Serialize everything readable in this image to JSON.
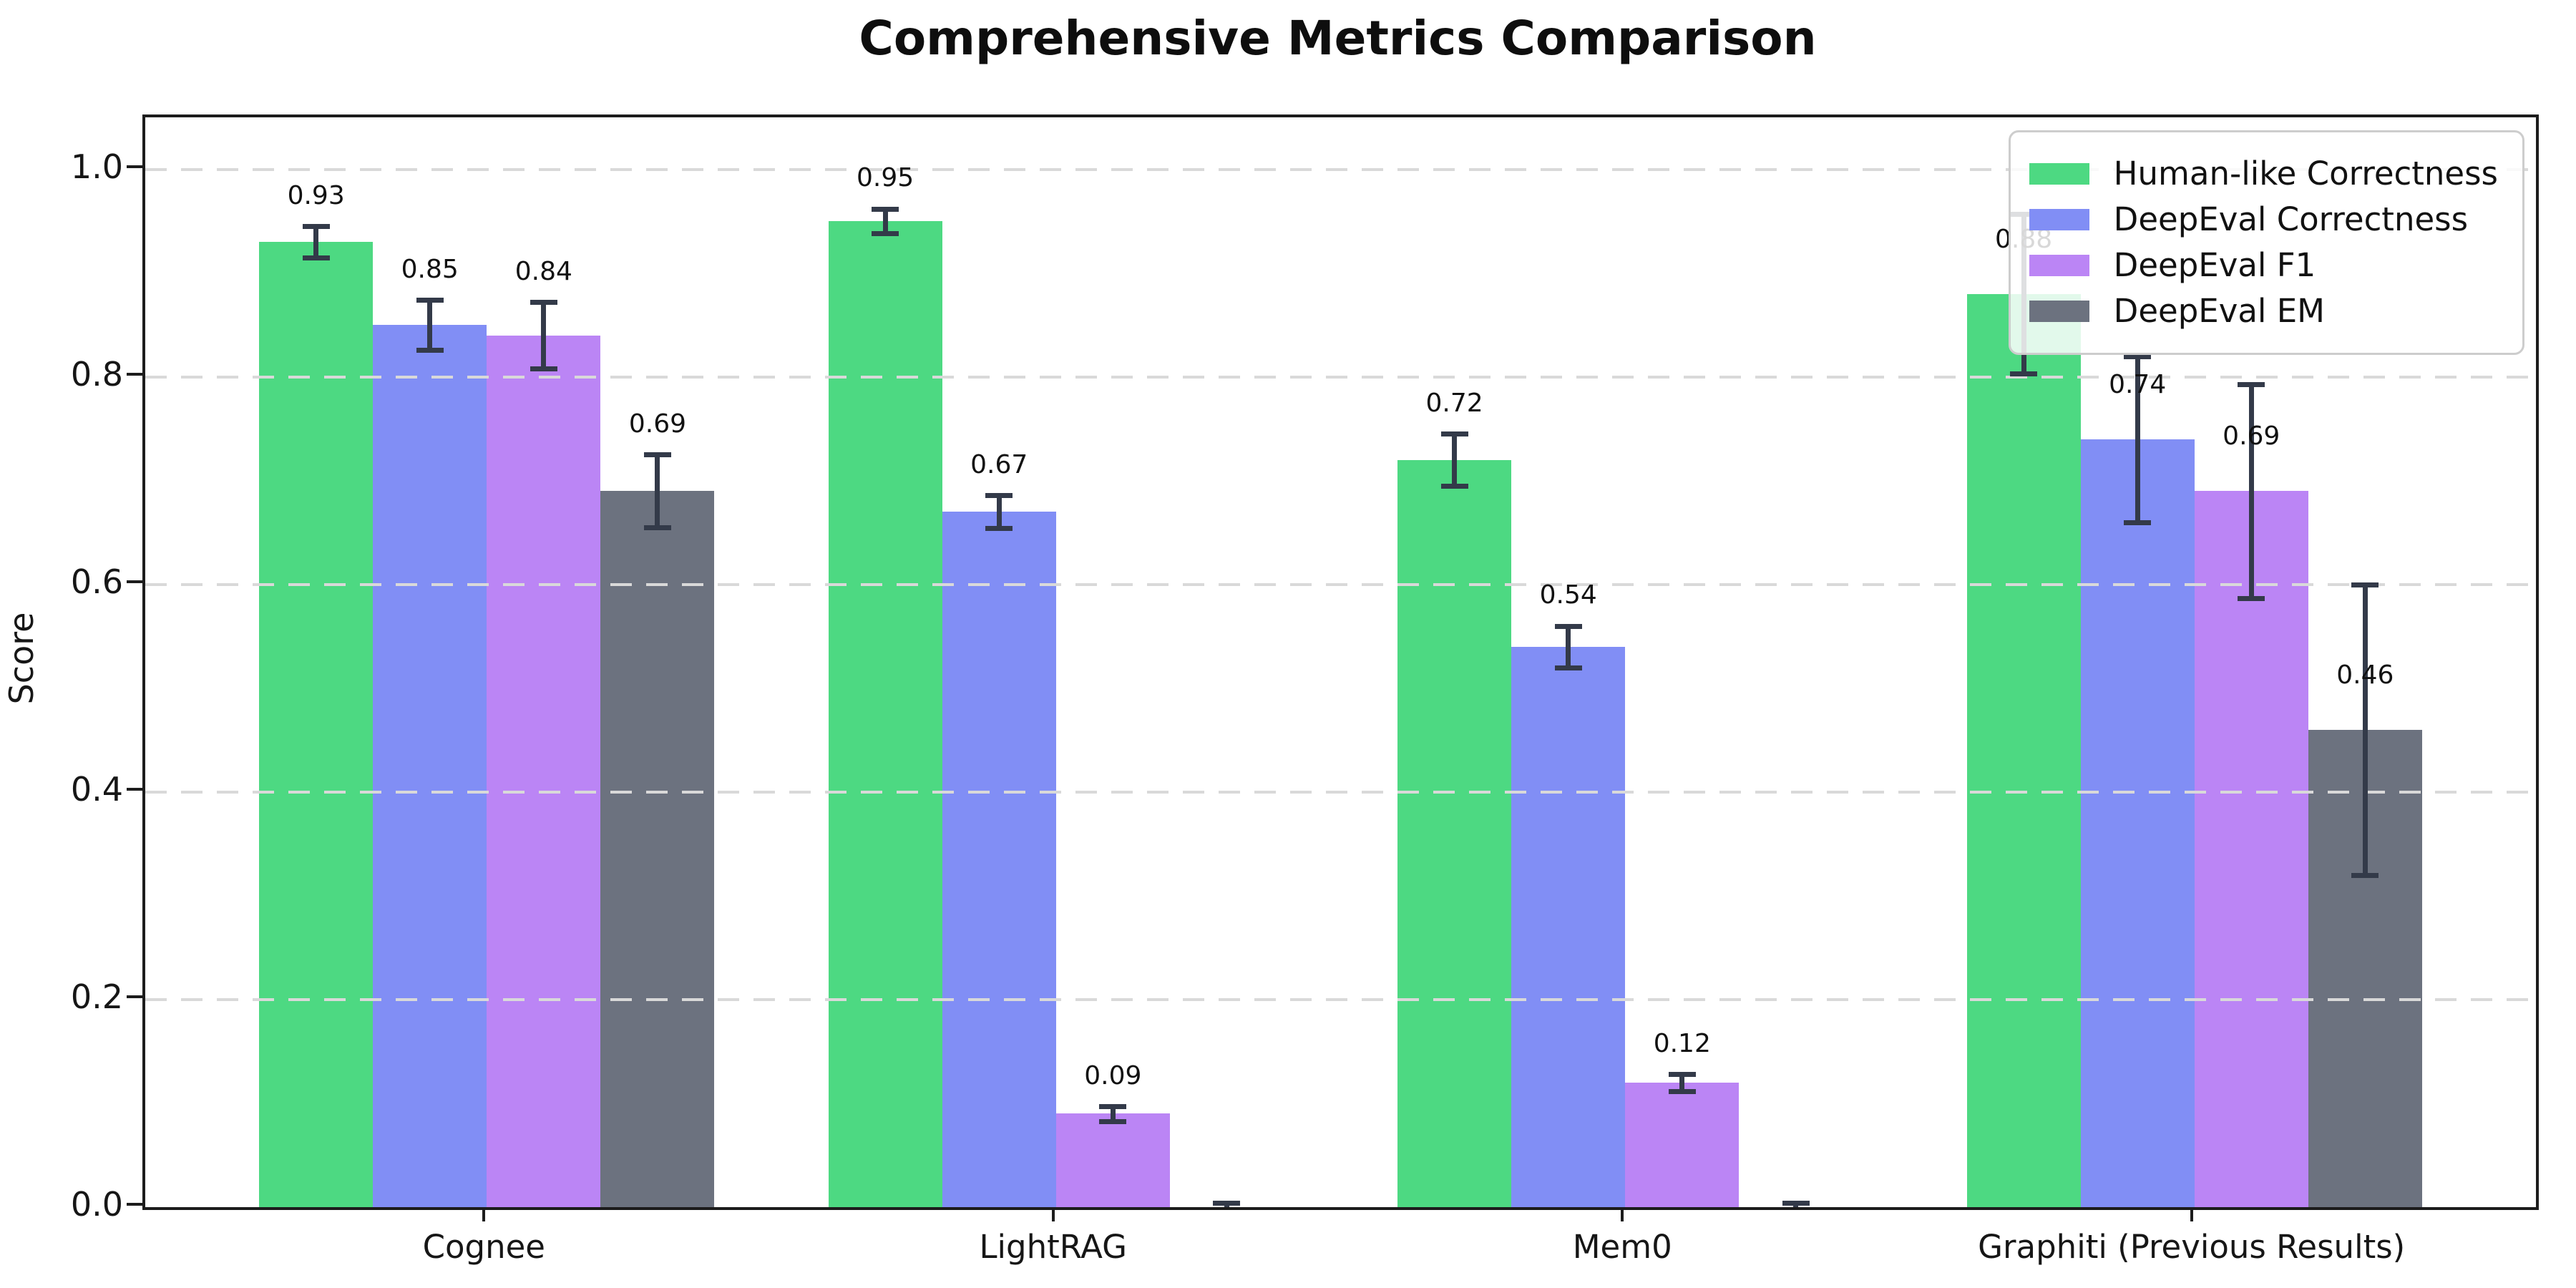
{
  "chart_data": {
    "type": "bar",
    "title": "Comprehensive Metrics Comparison",
    "xlabel": "",
    "ylabel": "Score",
    "ylim": [
      0,
      1.05
    ],
    "yticks": [
      "0.0",
      "0.2",
      "0.4",
      "0.6",
      "0.8",
      "1.0"
    ],
    "ytick_values": [
      0.0,
      0.2,
      0.4,
      0.6,
      0.8,
      1.0
    ],
    "grid": "horizontal dashed",
    "grid_color": "#d9d9d9",
    "legend_position": "upper right",
    "error_bar_color": "#333a49",
    "categories": [
      "Cognee",
      "LightRAG",
      "Mem0",
      "Graphiti (Previous Results)"
    ],
    "series": [
      {
        "name": "Human-like Correctness",
        "color": "#4dd982",
        "values": [
          0.93,
          0.95,
          0.72,
          0.88
        ],
        "errors": [
          0.015,
          0.012,
          0.025,
          0.077
        ],
        "labels": [
          "0.93",
          "0.95",
          "0.72",
          "0.88"
        ]
      },
      {
        "name": "DeepEval Correctness",
        "color": "#818ef5",
        "values": [
          0.85,
          0.67,
          0.54,
          0.74
        ],
        "errors": [
          0.024,
          0.016,
          0.02,
          0.08
        ],
        "labels": [
          "0.85",
          "0.67",
          "0.54",
          "0.74"
        ]
      },
      {
        "name": "DeepEval F1",
        "color": "#bb85f5",
        "values": [
          0.84,
          0.09,
          0.12,
          0.69
        ],
        "errors": [
          0.032,
          0.007,
          0.008,
          0.103
        ],
        "labels": [
          "0.84",
          "0.09",
          "0.12",
          "0.69"
        ]
      },
      {
        "name": "DeepEval EM",
        "color": "#6c727f",
        "values": [
          0.69,
          0.0,
          0.0,
          0.46
        ],
        "errors": [
          0.035,
          0.004,
          0.004,
          0.14
        ],
        "labels": [
          "0.69",
          "",
          "",
          "0.46"
        ]
      }
    ]
  }
}
